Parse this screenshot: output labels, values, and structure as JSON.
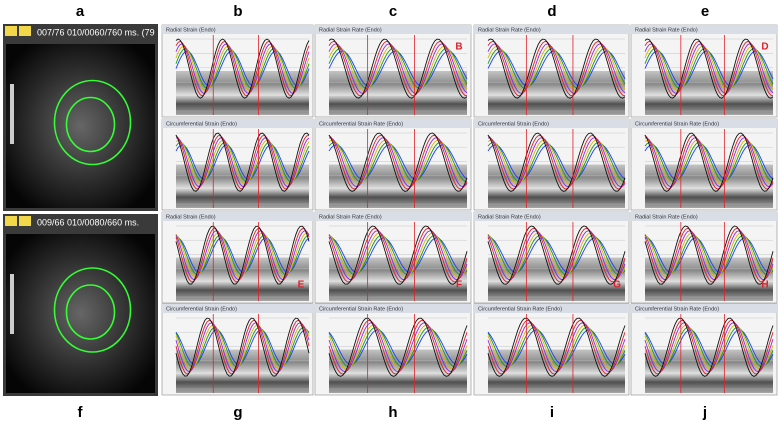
{
  "panel_labels": {
    "top": [
      "a",
      "b",
      "c",
      "d",
      "e"
    ],
    "bottom": [
      "f",
      "g",
      "h",
      "i",
      "j"
    ]
  },
  "echo": [
    {
      "caption": "007/76  010/0060/760 ms. (79"
    },
    {
      "caption": "009/66  010/0080/660 ms."
    }
  ],
  "strain_columns": [
    {
      "panels": [
        {
          "title": "Radial Strain (Endo)"
        },
        {
          "title": "Circumferential Strain (Endo)"
        },
        {
          "title": "Radial Strain (Endo)",
          "tag": "E"
        },
        {
          "title": "Circumferential Strain (Endo)"
        }
      ]
    },
    {
      "panels": [
        {
          "title": "Radial Strain Rate (Endo)",
          "tag": "B"
        },
        {
          "title": "Circumferential Strain Rate (Endo)"
        },
        {
          "title": "Radial Strain Rate (Endo)",
          "tag": "F"
        },
        {
          "title": "Circumferential Strain Rate (Endo)"
        }
      ]
    },
    {
      "panels": [
        {
          "title": "Radial Strain Rate (Endo)"
        },
        {
          "title": "Circumferential Strain (Endo)"
        },
        {
          "title": "Radial Strain Rate (Endo)",
          "tag": "G"
        },
        {
          "title": "Circumferential Strain Rate (Endo)"
        }
      ]
    },
    {
      "panels": [
        {
          "title": "Radial Strain Rate (Endo)",
          "tag": "D"
        },
        {
          "title": "Circumferential Strain Rate (Endo)"
        },
        {
          "title": "Radial Strain Rate (Endo)",
          "tag": "H"
        },
        {
          "title": "Circumferential Strain Rate (Endo)"
        }
      ]
    }
  ]
}
